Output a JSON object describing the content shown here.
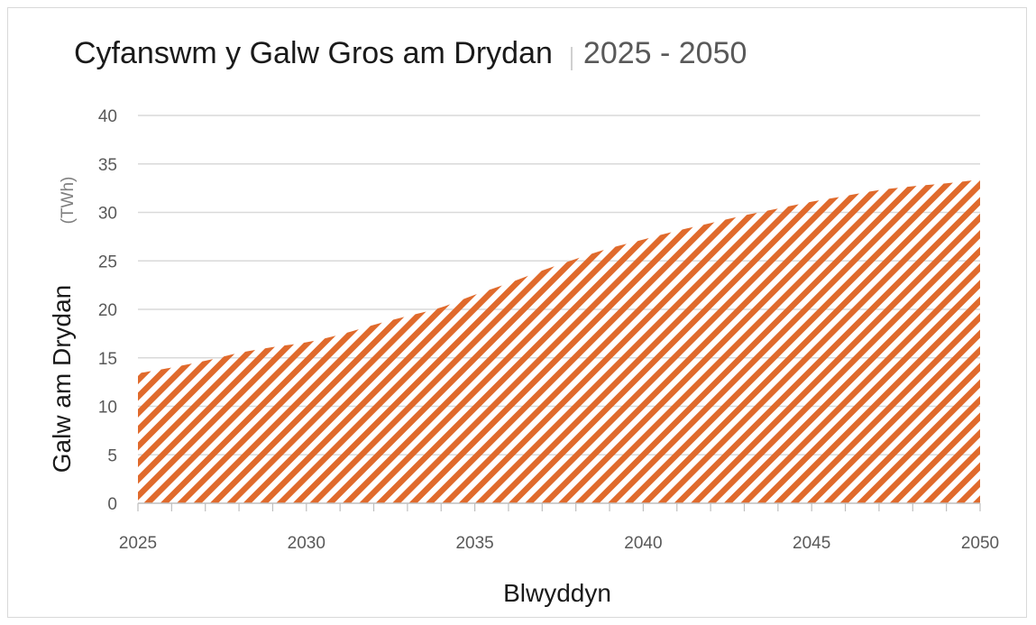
{
  "chart_data": {
    "type": "area",
    "title": "Cyfanswm y Galw Gros am Drydan",
    "subtitle": "2025 - 2050",
    "xlabel": "Blwyddyn",
    "ylabel": "Galw am Drydan",
    "yunit": "(TWh)",
    "xlim": [
      2025,
      2050
    ],
    "ylim": [
      0,
      40
    ],
    "xticks": [
      "2025",
      "2030",
      "2035",
      "2040",
      "2045",
      "2050"
    ],
    "yticks": [
      "0",
      "5",
      "10",
      "15",
      "20",
      "25",
      "30",
      "35",
      "40"
    ],
    "grid": true,
    "fill_color": "#E06A2C",
    "fill_pattern": "diagonal-hatch",
    "x": [
      2025,
      2026,
      2027,
      2028,
      2029,
      2030,
      2031,
      2032,
      2033,
      2034,
      2035,
      2036,
      2037,
      2038,
      2039,
      2040,
      2041,
      2042,
      2043,
      2044,
      2045,
      2046,
      2047,
      2048,
      2049,
      2050
    ],
    "values": [
      13.4,
      14.0,
      14.7,
      15.5,
      16.1,
      16.6,
      17.4,
      18.4,
      19.3,
      20.2,
      21.5,
      22.7,
      24.0,
      25.2,
      26.3,
      27.2,
      28.1,
      28.9,
      29.7,
      30.4,
      31.1,
      31.7,
      32.3,
      32.7,
      33.0,
      33.4
    ]
  }
}
